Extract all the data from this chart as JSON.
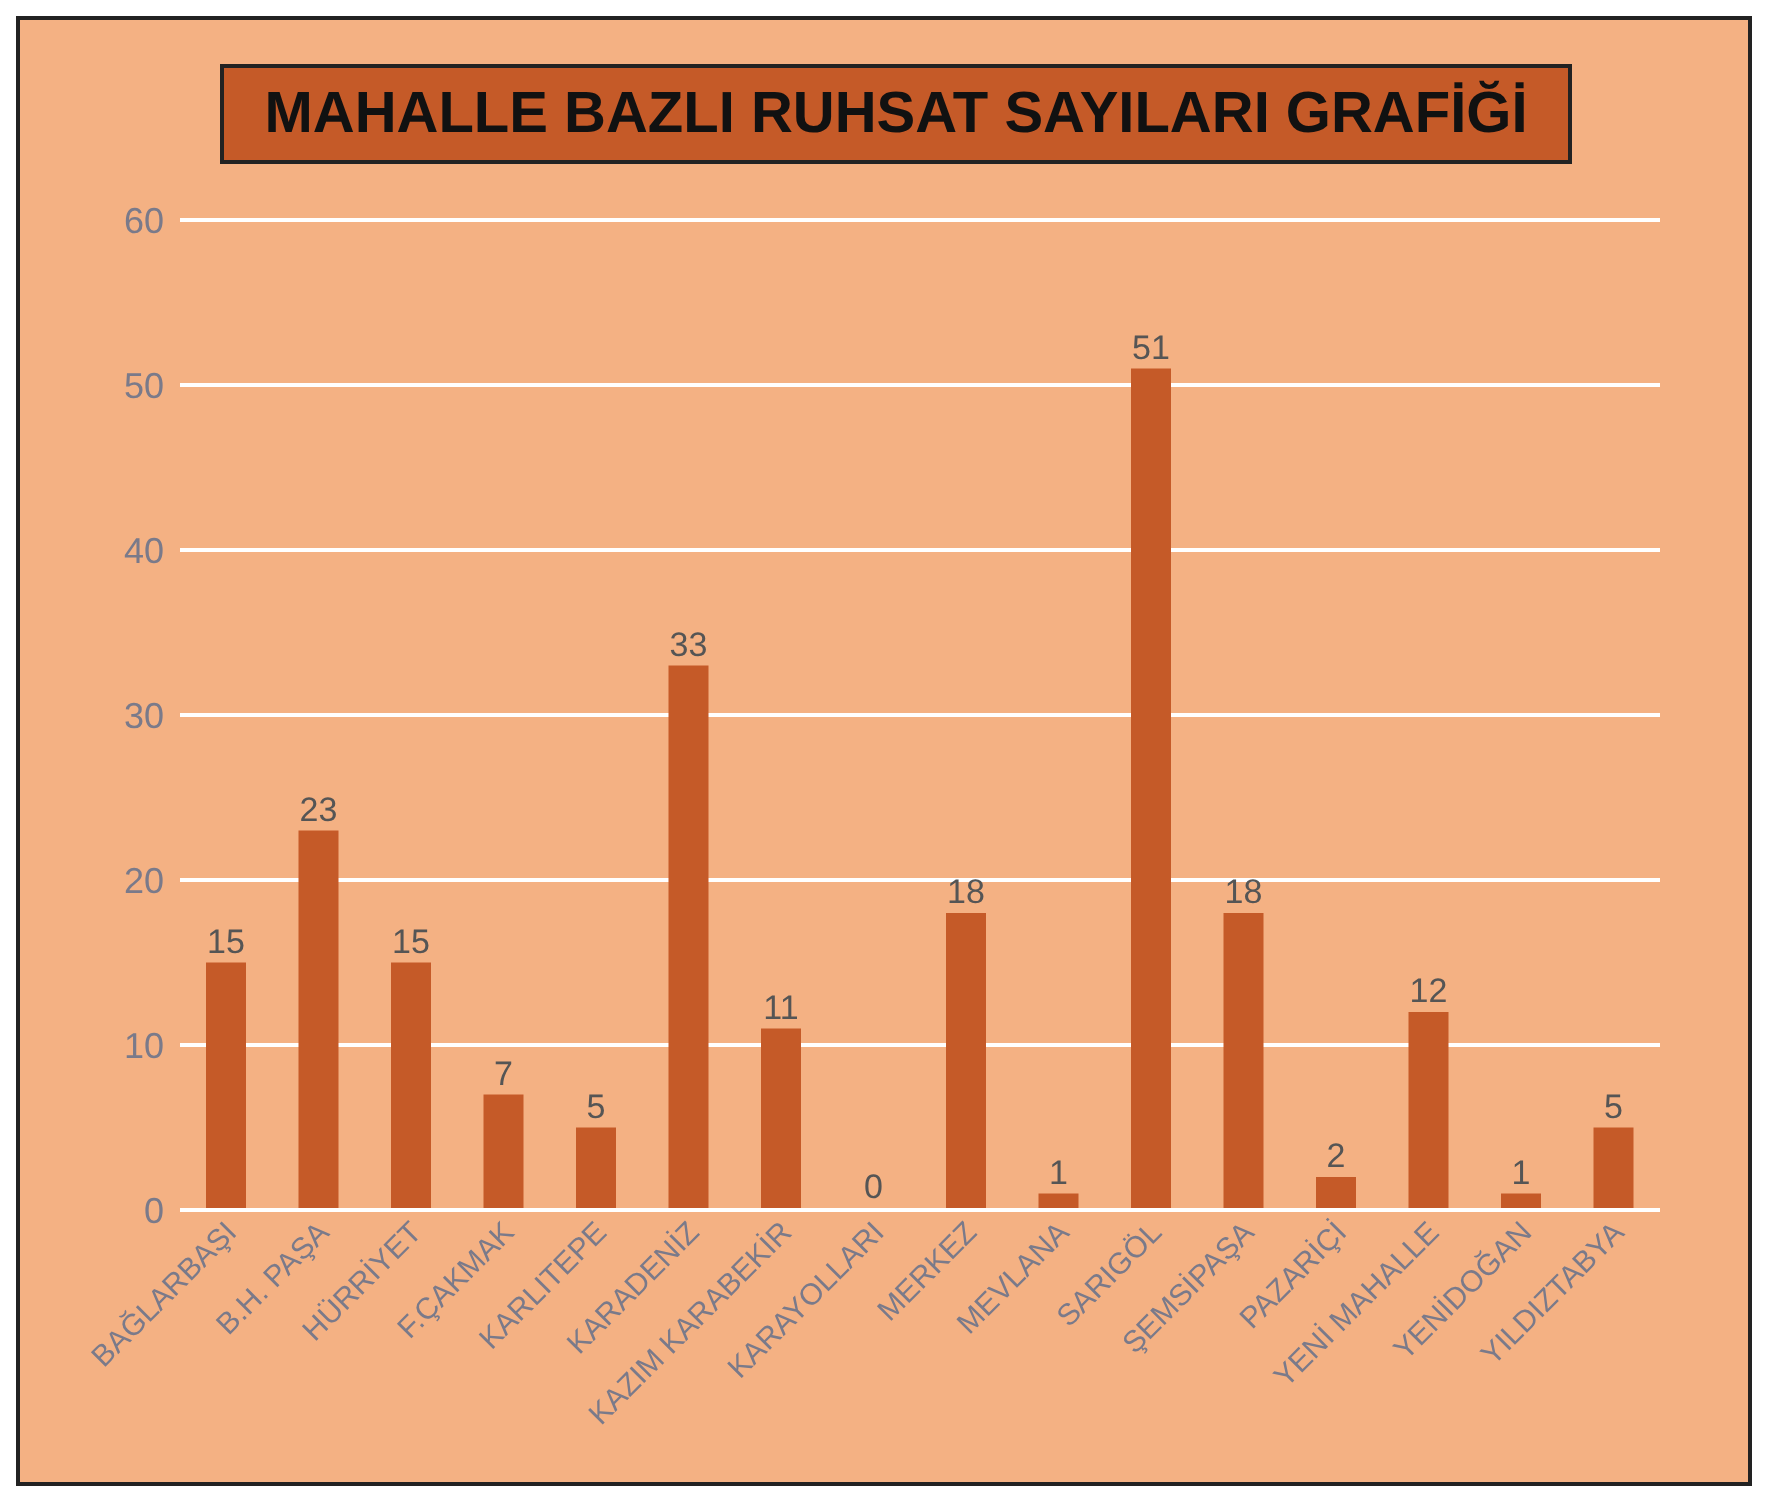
{
  "chart_data": {
    "type": "bar",
    "title": "MAHALLE BAZLI RUHSAT SAYILARI GRAFİĞİ",
    "categories": [
      "BAĞLARBAŞI",
      "B.H. PAŞA",
      "HÜRRİYET",
      "F.ÇAKMAK",
      "KARLITEPE",
      "KARADENİZ",
      "KAZIM KARABEKİR",
      "KARAYOLLARI",
      "MERKEZ",
      "MEVLANA",
      "SARIGÖL",
      "ŞEMSİPAŞA",
      "PAZARİÇİ",
      "YENİ MAHALLE",
      "YENİDOĞAN",
      "YILDIZTABYA"
    ],
    "values": [
      15,
      23,
      15,
      7,
      5,
      33,
      11,
      0,
      18,
      1,
      51,
      18,
      2,
      12,
      1,
      5
    ],
    "color": "#c55a28",
    "ylim": [
      0,
      60
    ],
    "yticks": [
      0,
      10,
      20,
      30,
      40,
      50,
      60
    ],
    "grid": "y",
    "data_labels": true
  }
}
